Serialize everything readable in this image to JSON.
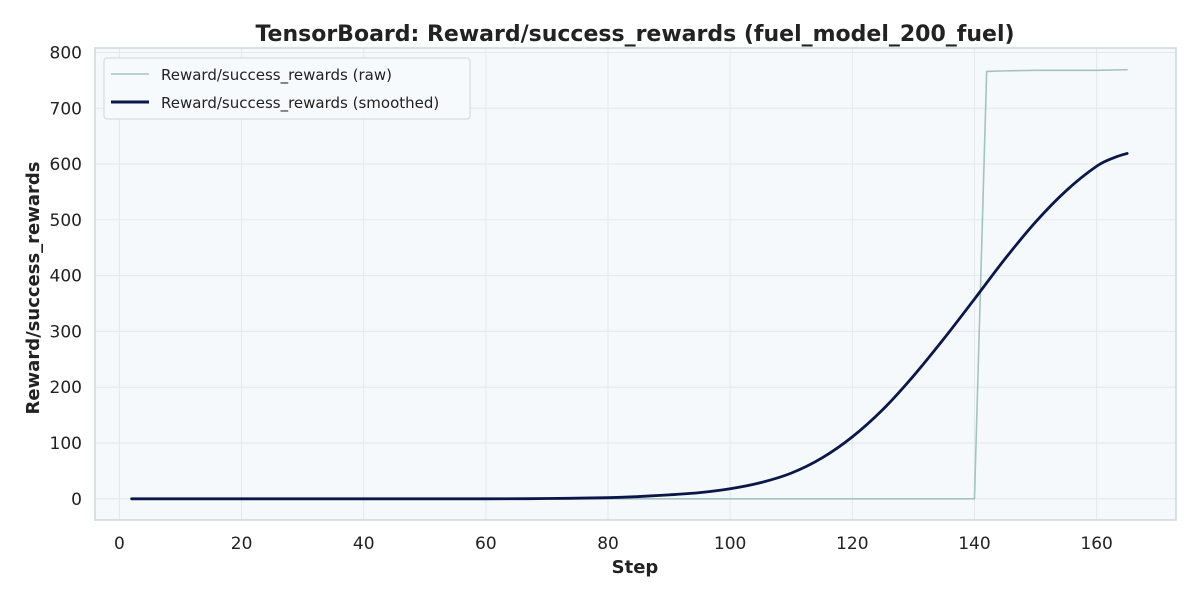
{
  "chart_data": {
    "type": "line",
    "title": "TensorBoard: Reward/success_rewards (fuel_model_200_fuel)",
    "xlabel": "Step",
    "ylabel": "Reward/success_rewards",
    "xlim": [
      -4,
      173
    ],
    "ylim": [
      -38,
      808
    ],
    "xticks": [
      0,
      20,
      40,
      60,
      80,
      100,
      120,
      140,
      160
    ],
    "yticks": [
      0,
      100,
      200,
      300,
      400,
      500,
      600,
      700,
      800
    ],
    "grid": true,
    "legend_position": "top-left",
    "colors": {
      "background": "#f5f9fc",
      "grid": "#e3e8ec",
      "frame": "#cfd5da",
      "raw": "#a6c3bb",
      "smoothed": "#0b1748"
    },
    "series": [
      {
        "name": "Reward/success_rewards (raw)",
        "x": [
          2,
          20,
          40,
          60,
          80,
          100,
          120,
          138,
          140,
          142,
          145,
          150,
          155,
          160,
          165
        ],
        "y": [
          0,
          0,
          0,
          0,
          0,
          0,
          0,
          0,
          0,
          766,
          767,
          768,
          768,
          768,
          769
        ]
      },
      {
        "name": "Reward/success_rewards (smoothed)",
        "x": [
          2,
          40,
          60,
          70,
          80,
          85,
          90,
          95,
          100,
          105,
          110,
          115,
          120,
          125,
          130,
          135,
          140,
          145,
          150,
          155,
          160,
          163,
          165
        ],
        "y": [
          0,
          0,
          0,
          0.5,
          2,
          4,
          7,
          11,
          18,
          29,
          46,
          73,
          111,
          160,
          220,
          287,
          358,
          430,
          496,
          552,
          596,
          612,
          619
        ]
      }
    ]
  }
}
